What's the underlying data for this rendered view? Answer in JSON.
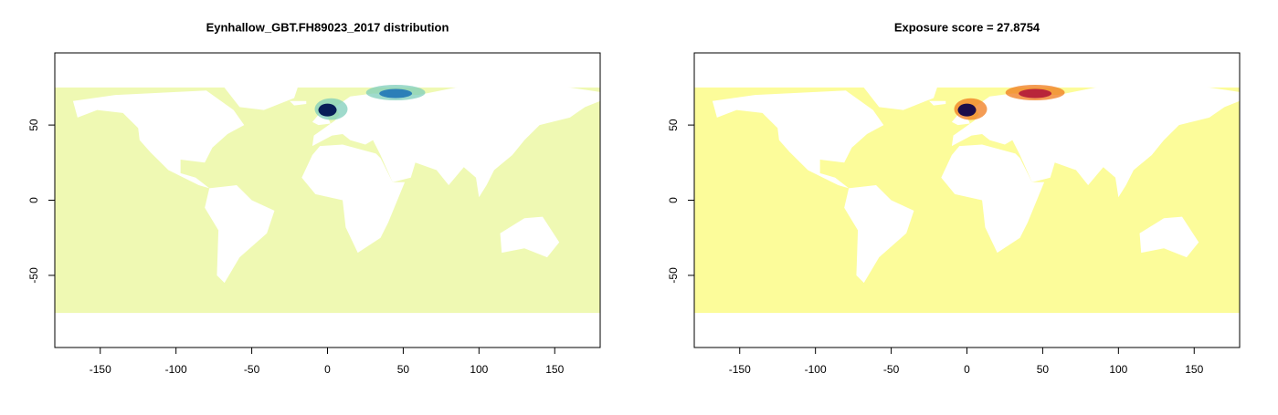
{
  "chart_data": [
    {
      "type": "map",
      "title": "Eynhallow_GBT.FH89023_2017 distribution",
      "xlim": [
        -180,
        180
      ],
      "ylim": [
        -98,
        98
      ],
      "xticks": [
        -150,
        -100,
        -50,
        0,
        50,
        100,
        150
      ],
      "yticks": [
        -50,
        0,
        50
      ],
      "color": "#eff9b3",
      "hotspots": {
        "x": [
          0,
          45
        ],
        "y": [
          60,
          71
        ],
        "colors": [
          "#081d58",
          "#2c7fb8"
        ],
        "halo": "#7fcdbb"
      }
    },
    {
      "type": "map",
      "title": "Exposure score = 27.8754",
      "xlim": [
        -180,
        180
      ],
      "ylim": [
        -98,
        98
      ],
      "xticks": [
        -150,
        -100,
        -50,
        0,
        50,
        100,
        150
      ],
      "yticks": [
        -50,
        0,
        50
      ],
      "color": "#fcfc9a",
      "hotspots": {
        "x": [
          0,
          45
        ],
        "y": [
          60,
          71
        ],
        "colors": [
          "#1b0c4a",
          "#b8253a"
        ],
        "halo": "#f07b1c"
      }
    }
  ]
}
